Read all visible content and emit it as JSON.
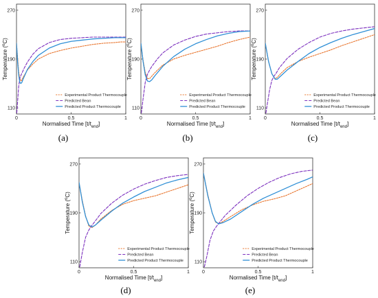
{
  "colors": {
    "experimental": "#e8742c",
    "bean": "#7b2fbe",
    "product": "#2f8fd6",
    "axis": "#333333"
  },
  "chart_data": [
    {
      "type": "line",
      "panel": "(a)",
      "xlabel": "Normalised Time [t/t",
      "xlabel_sub": "end",
      "xlabel_end": "]",
      "ylabel": "Temperature (",
      "ylabel_sup": "o",
      "ylabel_end": "C)",
      "xlim": [
        0,
        1
      ],
      "ylim": [
        100,
        280
      ],
      "xticks": [
        "0",
        "0.5",
        "1"
      ],
      "yticks": [
        "110",
        "190",
        "270"
      ],
      "legend": [
        "Experimental Product Thermocouple",
        "Predicted Bean",
        "Predicted Product Thermocouple"
      ],
      "series": [
        {
          "name": "Experimental Product Thermocouple",
          "x": [
            0.0,
            0.01,
            0.02,
            0.03,
            0.04,
            0.05,
            0.06,
            0.08,
            0.1,
            0.15,
            0.2,
            0.3,
            0.4,
            0.5,
            0.6,
            0.7,
            0.8,
            0.9,
            0.95,
            1.0
          ],
          "y": [
            216,
            192,
            170,
            158,
            154,
            156,
            160,
            166,
            172,
            182,
            190,
            199,
            204,
            208,
            211,
            214,
            216,
            217,
            218,
            218
          ]
        },
        {
          "name": "Predicted Bean",
          "x": [
            0.0,
            0.01,
            0.02,
            0.03,
            0.04,
            0.05,
            0.07,
            0.1,
            0.15,
            0.2,
            0.3,
            0.4,
            0.5,
            0.6,
            0.7,
            0.8,
            0.9,
            1.0
          ],
          "y": [
            95,
            120,
            145,
            158,
            163,
            167,
            175,
            185,
            198,
            207,
            217,
            222,
            224,
            225,
            226,
            226,
            226,
            226
          ]
        },
        {
          "name": "Predicted Product Thermocouple",
          "x": [
            0.0,
            0.01,
            0.02,
            0.03,
            0.04,
            0.05,
            0.06,
            0.08,
            0.1,
            0.15,
            0.2,
            0.3,
            0.4,
            0.5,
            0.6,
            0.7,
            0.8,
            0.9,
            1.0
          ],
          "y": [
            216,
            186,
            164,
            152,
            150,
            152,
            157,
            165,
            173,
            186,
            196,
            208,
            215,
            219,
            221,
            223,
            224,
            225,
            225
          ]
        }
      ]
    },
    {
      "type": "line",
      "panel": "(b)",
      "xlabel": "Normalised Time [t/t",
      "xlabel_sub": "end",
      "xlabel_end": "]",
      "ylabel": "Temperature (",
      "ylabel_sup": "o",
      "ylabel_end": "C)",
      "xlim": [
        0,
        1
      ],
      "ylim": [
        100,
        280
      ],
      "xticks": [
        "0",
        "0.5",
        "1"
      ],
      "yticks": [
        "110",
        "190",
        "270"
      ],
      "legend": [
        "Experimental Product Thermocouple",
        "Predicted Bean",
        "Predicted Product Thermocouple"
      ],
      "series": [
        {
          "name": "Experimental Product Thermocouple",
          "x": [
            0.0,
            0.02,
            0.04,
            0.06,
            0.08,
            0.1,
            0.13,
            0.2,
            0.3,
            0.4,
            0.5,
            0.6,
            0.7,
            0.8,
            0.9,
            1.0
          ],
          "y": [
            216,
            188,
            168,
            158,
            158,
            162,
            168,
            180,
            190,
            196,
            201,
            206,
            211,
            217,
            222,
            226
          ]
        },
        {
          "name": "Predicted Bean",
          "x": [
            0.0,
            0.02,
            0.04,
            0.06,
            0.08,
            0.1,
            0.15,
            0.2,
            0.3,
            0.4,
            0.5,
            0.6,
            0.7,
            0.8,
            0.9,
            1.0
          ],
          "y": [
            95,
            125,
            152,
            165,
            172,
            178,
            190,
            200,
            213,
            221,
            227,
            231,
            233,
            235,
            236,
            236
          ]
        },
        {
          "name": "Predicted Product Thermocouple",
          "x": [
            0.0,
            0.02,
            0.04,
            0.06,
            0.08,
            0.1,
            0.13,
            0.2,
            0.3,
            0.4,
            0.5,
            0.6,
            0.7,
            0.8,
            0.9,
            1.0
          ],
          "y": [
            216,
            186,
            164,
            154,
            153,
            156,
            163,
            178,
            194,
            206,
            215,
            222,
            228,
            232,
            235,
            236
          ]
        }
      ]
    },
    {
      "type": "line",
      "panel": "(c)",
      "xlabel": "Normalised Time [t/t",
      "xlabel_sub": "end",
      "xlabel_end": "]",
      "ylabel": "Temperature (",
      "ylabel_sup": "o",
      "ylabel_end": "C)",
      "xlim": [
        0,
        1
      ],
      "ylim": [
        100,
        280
      ],
      "xticks": [
        "0",
        "0.5",
        "1"
      ],
      "yticks": [
        "110",
        "190",
        "270"
      ],
      "legend": [
        "Experimental Product Thermocouple",
        "Predicted Bean",
        "Predicted Product Thermocouple"
      ],
      "series": [
        {
          "name": "Experimental Product Thermocouple",
          "x": [
            0.0,
            0.03,
            0.06,
            0.09,
            0.11,
            0.14,
            0.2,
            0.3,
            0.4,
            0.5,
            0.6,
            0.7,
            0.8,
            0.9,
            1.0
          ],
          "y": [
            216,
            186,
            166,
            158,
            160,
            166,
            176,
            186,
            193,
            199,
            205,
            212,
            218,
            224,
            230
          ]
        },
        {
          "name": "Predicted Bean",
          "x": [
            0.0,
            0.02,
            0.04,
            0.06,
            0.08,
            0.1,
            0.13,
            0.2,
            0.3,
            0.4,
            0.5,
            0.6,
            0.7,
            0.8,
            0.9,
            1.0
          ],
          "y": [
            95,
            118,
            140,
            155,
            162,
            167,
            176,
            191,
            206,
            217,
            226,
            232,
            236,
            239,
            241,
            243
          ]
        },
        {
          "name": "Predicted Product Thermocouple",
          "x": [
            0.0,
            0.03,
            0.06,
            0.09,
            0.11,
            0.14,
            0.2,
            0.3,
            0.4,
            0.5,
            0.6,
            0.7,
            0.8,
            0.9,
            1.0
          ],
          "y": [
            216,
            186,
            166,
            157,
            157,
            162,
            172,
            186,
            199,
            209,
            217,
            224,
            230,
            235,
            240
          ]
        }
      ]
    },
    {
      "type": "line",
      "panel": "(d)",
      "xlabel": "Normalised Time [t/t",
      "xlabel_sub": "end",
      "xlabel_end": "]",
      "ylabel": "Temperature (",
      "ylabel_sup": "o",
      "ylabel_end": "C)",
      "xlim": [
        0,
        1
      ],
      "ylim": [
        100,
        280
      ],
      "xticks": [
        "0",
        "0.5",
        "1"
      ],
      "yticks": [
        "110",
        "190",
        "270"
      ],
      "legend": [
        "Experimental Product Thermocouple",
        "Predicted Bean",
        "Predicted Product Thermocouple"
      ],
      "series": [
        {
          "name": "Experimental Product Thermocouple",
          "x": [
            0.0,
            0.03,
            0.06,
            0.09,
            0.12,
            0.15,
            0.2,
            0.3,
            0.4,
            0.5,
            0.6,
            0.7,
            0.8,
            0.9,
            1.0
          ],
          "y": [
            240,
            210,
            185,
            168,
            166,
            170,
            180,
            194,
            204,
            210,
            214,
            218,
            224,
            230,
            236
          ]
        },
        {
          "name": "Predicted Bean",
          "x": [
            0.0,
            0.03,
            0.06,
            0.09,
            0.12,
            0.15,
            0.2,
            0.3,
            0.4,
            0.5,
            0.6,
            0.7,
            0.8,
            0.9,
            1.0
          ],
          "y": [
            95,
            125,
            150,
            162,
            170,
            177,
            189,
            206,
            219,
            229,
            237,
            243,
            248,
            251,
            253
          ]
        },
        {
          "name": "Predicted Product Thermocouple",
          "x": [
            0.0,
            0.03,
            0.06,
            0.09,
            0.12,
            0.15,
            0.2,
            0.3,
            0.4,
            0.5,
            0.6,
            0.7,
            0.8,
            0.9,
            1.0
          ],
          "y": [
            240,
            208,
            184,
            170,
            167,
            170,
            178,
            193,
            206,
            216,
            225,
            232,
            239,
            244,
            248
          ]
        }
      ]
    },
    {
      "type": "line",
      "panel": "(e)",
      "xlabel": "Normalised Time [t/t",
      "xlabel_sub": "end",
      "xlabel_end": "]",
      "ylabel": "Temperature (",
      "ylabel_sup": "o",
      "ylabel_end": "C)",
      "xlim": [
        0,
        1
      ],
      "ylim": [
        100,
        280
      ],
      "xticks": [
        "0",
        "0.5",
        "1"
      ],
      "yticks": [
        "110",
        "190",
        "270"
      ],
      "legend": [
        "Experimental Product Thermocouple",
        "Predicted Bean",
        "Predicted Product Thermocouple"
      ],
      "series": [
        {
          "name": "Experimental Product Thermocouple",
          "x": [
            0.0,
            0.04,
            0.08,
            0.11,
            0.14,
            0.18,
            0.25,
            0.35,
            0.45,
            0.55,
            0.65,
            0.75,
            0.85,
            0.95,
            1.0
          ],
          "y": [
            255,
            220,
            190,
            175,
            172,
            176,
            184,
            195,
            203,
            209,
            213,
            218,
            226,
            234,
            238
          ]
        },
        {
          "name": "Predicted Bean",
          "x": [
            0.0,
            0.03,
            0.06,
            0.09,
            0.12,
            0.15,
            0.2,
            0.3,
            0.4,
            0.5,
            0.6,
            0.7,
            0.8,
            0.9,
            1.0
          ],
          "y": [
            95,
            118,
            145,
            160,
            168,
            175,
            186,
            203,
            218,
            230,
            240,
            248,
            254,
            258,
            260
          ]
        },
        {
          "name": "Predicted Product Thermocouple",
          "x": [
            0.0,
            0.04,
            0.08,
            0.11,
            0.14,
            0.18,
            0.25,
            0.35,
            0.45,
            0.55,
            0.65,
            0.75,
            0.85,
            0.95,
            1.0
          ],
          "y": [
            255,
            218,
            190,
            176,
            172,
            174,
            180,
            192,
            204,
            214,
            222,
            230,
            238,
            245,
            249
          ]
        }
      ]
    }
  ]
}
